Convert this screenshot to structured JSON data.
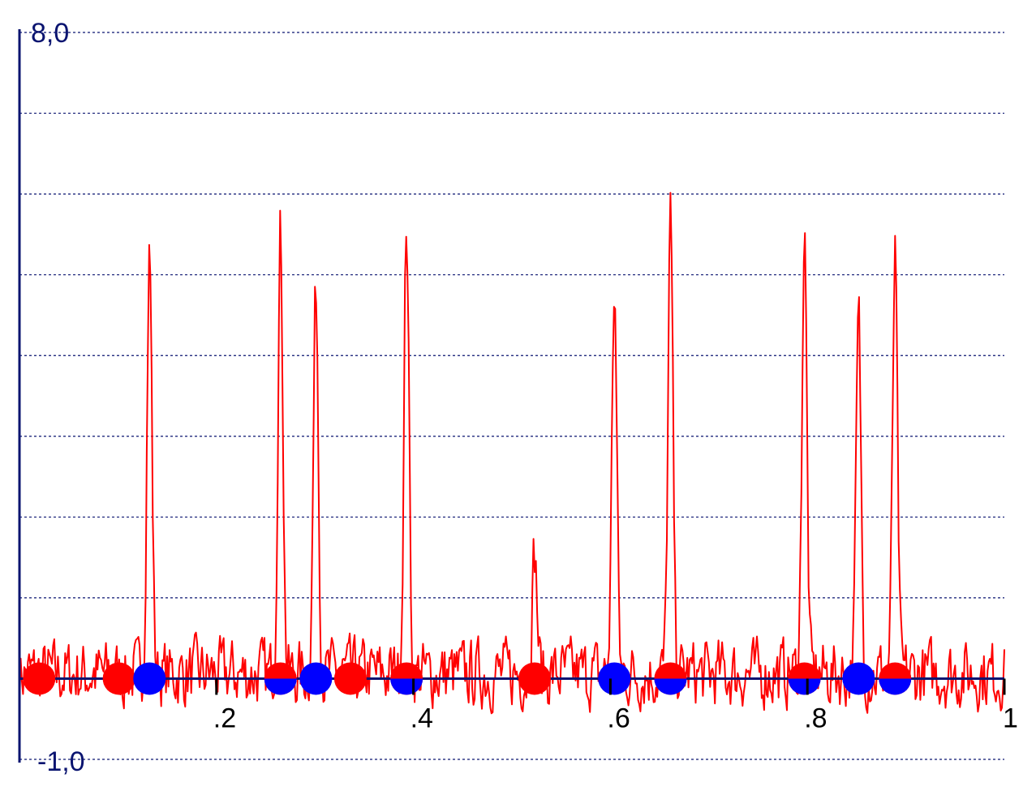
{
  "chart_data": {
    "type": "line",
    "xlim": [
      0,
      1
    ],
    "ylim": [
      -1.0,
      8.0
    ],
    "x_tick_labels": [
      ".2",
      ".4",
      ".6",
      ".8",
      "1"
    ],
    "x_tick_values": [
      0.2,
      0.4,
      0.6,
      0.8,
      1.0
    ],
    "y_tick_labels": [
      "8,0",
      "-1,0"
    ],
    "y_tick_values": [
      8.0,
      -1.0
    ],
    "grid": "horizontal dashed every 1.0",
    "line_color": "#ff0000",
    "axis_color": "#0a1470",
    "peaks": [
      {
        "x": 0.132,
        "y": 5.25
      },
      {
        "x": 0.265,
        "y": 5.5
      },
      {
        "x": 0.301,
        "y": 4.8
      },
      {
        "x": 0.393,
        "y": 5.6
      },
      {
        "x": 0.523,
        "y": 1.5
      },
      {
        "x": 0.604,
        "y": 4.8
      },
      {
        "x": 0.661,
        "y": 5.6
      },
      {
        "x": 0.797,
        "y": 5.45
      },
      {
        "x": 0.852,
        "y": 4.4
      },
      {
        "x": 0.889,
        "y": 5.1
      }
    ],
    "red_markers": [
      0.02,
      0.101,
      0.265,
      0.336,
      0.393,
      0.523,
      0.661,
      0.797,
      0.889
    ],
    "blue_markers": [
      0.132,
      0.265,
      0.301,
      0.393,
      0.604,
      0.661,
      0.797,
      0.852,
      0.889
    ],
    "marker_colors": {
      "red": "#ff0000",
      "blue": "#0000ff"
    }
  }
}
